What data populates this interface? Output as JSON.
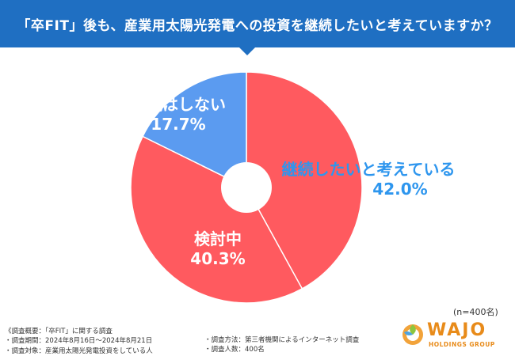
{
  "header": {
    "title": "「卒FIT」後も、産業用太陽光発電への投資を継続したいと考えていますか？"
  },
  "colors": {
    "header_bg": "#1f6fc2",
    "continue": "#ff5a5f",
    "consider": "#ff5a5f",
    "not_continue": "#5b9bf0",
    "continue_label": "#2e96ee"
  },
  "chart_data": {
    "type": "pie",
    "donut": true,
    "title": "「卒FIT」後も、産業用太陽光発電への投資を継続したいと考えていますか？",
    "slices": [
      {
        "label": "継続したいと考えている",
        "value": 42.0,
        "pct_text": "42.0%"
      },
      {
        "label": "検討中",
        "value": 40.3,
        "pct_text": "40.3%"
      },
      {
        "label": "継続はしない",
        "value": 17.7,
        "pct_text": "17.7%"
      }
    ],
    "sample": "(n=400名)"
  },
  "notes": {
    "left": [
      "《調査概要：「卒FIT」に関する調査",
      "・調査期間：2024年8月16日～2024年8月21日",
      "・調査対象：産業用太陽光発電投資をしている人"
    ],
    "right": [
      "・調査方法：第三者機関によるインターネット調査",
      "・調査人数：400名"
    ]
  },
  "logo": {
    "name": "WAJO",
    "sub": "HOLDINGS GROUP",
    "icon": "wajo-logo-icon"
  }
}
